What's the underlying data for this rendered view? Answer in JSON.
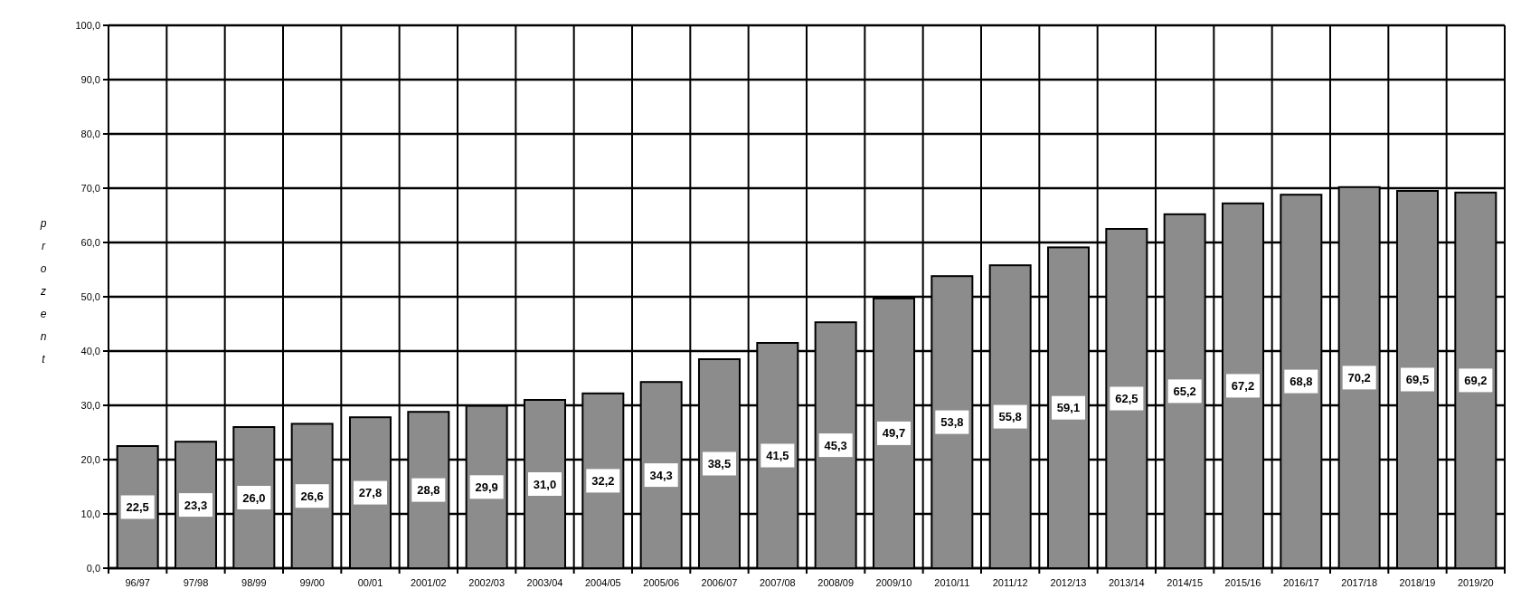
{
  "chart_data": {
    "type": "bar",
    "ylabel": "prozent",
    "categories": [
      "96/97",
      "97/98",
      "98/99",
      "99/00",
      "00/01",
      "2001/02",
      "2002/03",
      "2003/04",
      "2004/05",
      "2005/06",
      "2006/07",
      "2007/08",
      "2008/09",
      "2009/10",
      "2010/11",
      "2011/12",
      "2012/13",
      "2013/14",
      "2014/15",
      "2015/16",
      "2016/17",
      "2017/18",
      "2018/19",
      "2019/20"
    ],
    "values": [
      22.5,
      23.3,
      26.0,
      26.6,
      27.8,
      28.8,
      29.9,
      31.0,
      32.2,
      34.3,
      38.5,
      41.5,
      45.3,
      49.7,
      53.8,
      55.8,
      59.1,
      62.5,
      65.2,
      67.2,
      68.8,
      70.2,
      69.5,
      69.2
    ],
    "value_labels": [
      "22,5",
      "23,3",
      "26,0",
      "26,6",
      "27,8",
      "28,8",
      "29,9",
      "31,0",
      "32,2",
      "34,3",
      "38,5",
      "41,5",
      "45,3",
      "49,7",
      "53,8",
      "55,8",
      "59,1",
      "62,5",
      "65,2",
      "67,2",
      "68,8",
      "70,2",
      "69,5",
      "69,2"
    ],
    "color": "#8c8c8c",
    "ylim": [
      0,
      100
    ],
    "yticks": [
      {
        "value": 0,
        "label": "0,0"
      },
      {
        "value": 10,
        "label": "10,0"
      },
      {
        "value": 20,
        "label": "20,0"
      },
      {
        "value": 30,
        "label": "30,0"
      },
      {
        "value": 40,
        "label": "40,0"
      },
      {
        "value": 50,
        "label": "50,0"
      },
      {
        "value": 60,
        "label": "60,0"
      },
      {
        "value": 70,
        "label": "70,0"
      },
      {
        "value": 80,
        "label": "80,0"
      },
      {
        "value": 90,
        "label": "90,0"
      },
      {
        "value": 100,
        "label": "100,0"
      }
    ],
    "grid": true
  }
}
